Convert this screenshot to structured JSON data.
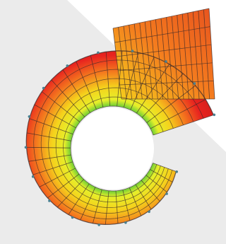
{
  "figure": {
    "subject": "volute-casing-mesh-contour-plot",
    "colors": {
      "background_white": "#ffffff",
      "background_gray": "#ebebeb",
      "high": "#e8231f",
      "mid_high": "#f47c1e",
      "mid": "#f5d21c",
      "low": "#e6ef2a",
      "lowest": "#45c23a",
      "mesh_line": "#3a2a2a",
      "node_marker": "#4a8090"
    }
  }
}
